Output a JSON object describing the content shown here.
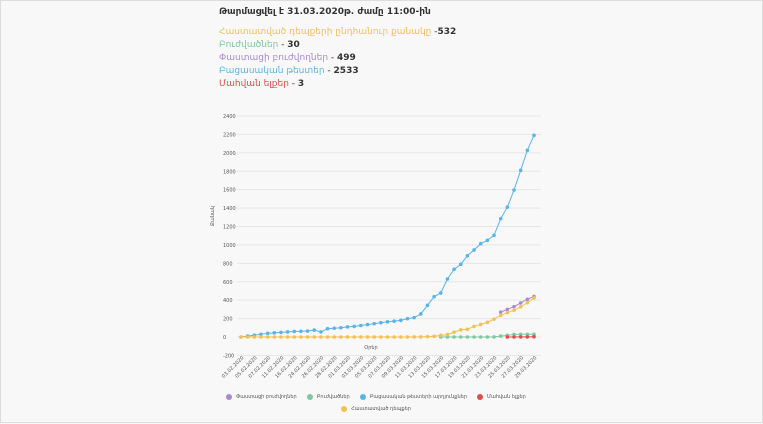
{
  "header": {
    "updated": "Թարմացվել է 31.03.2020թ. ժամը 11:00-ին",
    "stats": [
      {
        "label": "Հաստատված դեպքերի ընդհանուր քանակը",
        "sep": " -",
        "value": "532",
        "color": "#f2c14e"
      },
      {
        "label": "Բուժվածներ",
        "sep": " - ",
        "value": "30",
        "color": "#7fc8a0"
      },
      {
        "label": "Փաստացի բուժվողներ",
        "sep": " - ",
        "value": "499",
        "color": "#a98ad2"
      },
      {
        "label": "Բացասական թեստեր",
        "sep": " - ",
        "value": "2533",
        "color": "#5ab4ea"
      },
      {
        "label": "Մահվան ելքեր",
        "sep": " - ",
        "value": "3",
        "color": "#e04b4b"
      }
    ]
  },
  "chart_data": {
    "type": "line",
    "xlabel": "Օրեր",
    "ylabel": "Քանակ",
    "ylim": [
      -200,
      2400
    ],
    "yticks": [
      2400,
      2200,
      2000,
      1800,
      1600,
      1400,
      1200,
      1000,
      800,
      600,
      400,
      200,
      0,
      -200
    ],
    "grid": true,
    "legend_position": "bottom",
    "xtick_labels": [
      "03.02.2020",
      "05.02.2020",
      "07.02.2020",
      "11.02.2020",
      "16.02.2020",
      "24.02.2020",
      "26.02.2020",
      "28.02.2020",
      "01.03.2020",
      "03.03.2020",
      "05.03.2020",
      "07.03.2020",
      "09.03.2020",
      "11.03.2020",
      "13.03.2020",
      "15.03.2020",
      "17.03.2020",
      "19.03.2020",
      "21.03.2020",
      "23.03.2020",
      "25.03.2020",
      "27.03.2020",
      "29.03.2020"
    ],
    "n_points": 45,
    "series": [
      {
        "name": "Փաստացի բուժվողներ",
        "color": "#a98ad2",
        "values": [
          null,
          null,
          null,
          null,
          null,
          null,
          null,
          null,
          null,
          null,
          null,
          null,
          null,
          null,
          null,
          null,
          null,
          null,
          null,
          null,
          null,
          null,
          null,
          null,
          null,
          null,
          null,
          null,
          null,
          null,
          null,
          null,
          null,
          null,
          null,
          null,
          null,
          null,
          null,
          270,
          300,
          330,
          370,
          410,
          440
        ]
      },
      {
        "name": "Բուժվածներ",
        "color": "#7fc8a0",
        "values": [
          null,
          null,
          null,
          null,
          null,
          null,
          null,
          null,
          null,
          null,
          null,
          null,
          null,
          null,
          null,
          null,
          null,
          null,
          null,
          null,
          null,
          null,
          null,
          null,
          null,
          null,
          null,
          null,
          null,
          null,
          0,
          0,
          0,
          0,
          0,
          0,
          0,
          0,
          1,
          10,
          18,
          28,
          30,
          30,
          30
        ]
      },
      {
        "name": "Բացասական թեստերի արդյունքներ",
        "color": "#5ab4ea",
        "values": [
          0,
          10,
          20,
          30,
          40,
          45,
          50,
          55,
          60,
          62,
          65,
          75,
          55,
          90,
          95,
          100,
          110,
          115,
          125,
          135,
          145,
          155,
          165,
          172,
          181,
          199,
          210,
          250,
          344,
          438,
          478,
          630,
          735,
          789,
          883,
          945,
          1013,
          1050,
          1104,
          1285,
          1411,
          1596,
          1810,
          2027,
          2190
        ]
      },
      {
        "name": "Մահվան ելքեր",
        "color": "#e04b4b",
        "values": [
          null,
          null,
          null,
          null,
          null,
          null,
          null,
          null,
          null,
          null,
          null,
          null,
          null,
          null,
          null,
          null,
          null,
          null,
          null,
          null,
          null,
          null,
          null,
          null,
          null,
          null,
          null,
          null,
          null,
          null,
          null,
          null,
          null,
          null,
          null,
          null,
          null,
          null,
          null,
          null,
          0,
          0,
          1,
          1,
          3
        ]
      },
      {
        "name": "Հաստատված դեպքեր",
        "color": "#f2c14e",
        "values": [
          0,
          0,
          0,
          0,
          0,
          0,
          0,
          0,
          0,
          0,
          0,
          0,
          0,
          0,
          0,
          0,
          0,
          0,
          0,
          0,
          0,
          0,
          0,
          0,
          0,
          0,
          1,
          1,
          4,
          8,
          18,
          26,
          52,
          78,
          84,
          115,
          136,
          160,
          194,
          235,
          265,
          290,
          329,
          372,
          424
        ]
      }
    ]
  }
}
